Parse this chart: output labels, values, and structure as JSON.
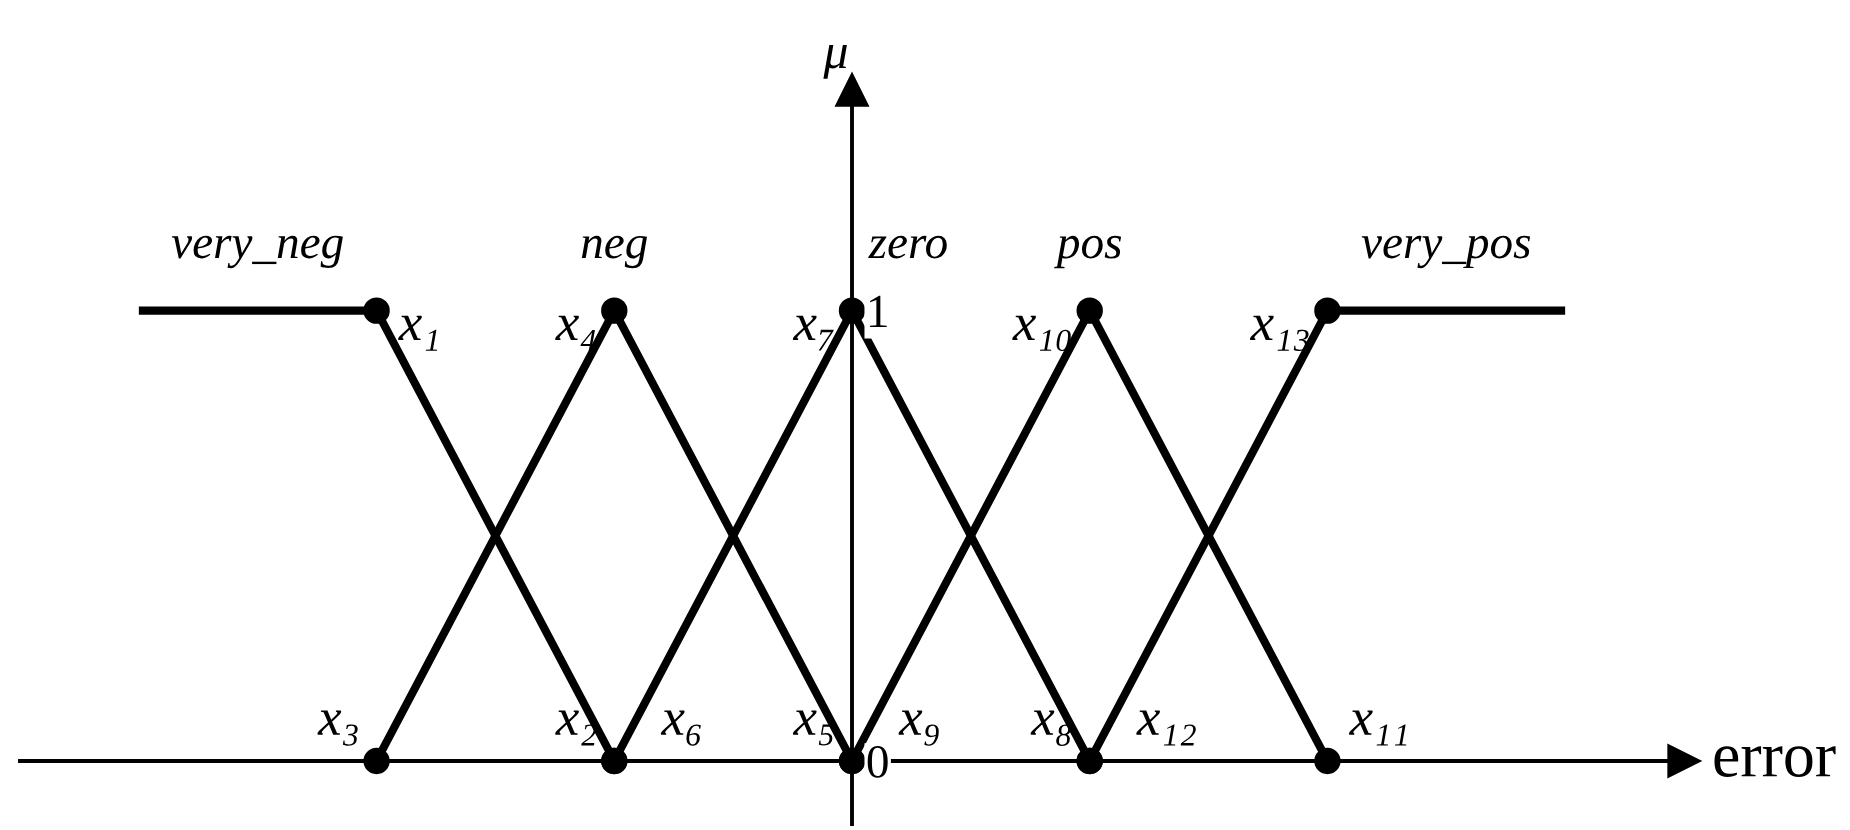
{
  "chart_data": {
    "type": "line",
    "categories": [
      null,
      null,
      null,
      null,
      null,
      null,
      null
    ],
    "series": [
      {
        "name": "very_neg",
        "color": "#000000",
        "values": [
          1,
          1,
          0,
          null,
          null,
          null,
          null
        ],
        "value_labels": [
          null,
          "x₁",
          "x₂",
          null,
          null,
          null,
          null
        ]
      },
      {
        "name": "neg",
        "color": "#000000",
        "values": [
          null,
          0,
          1,
          0,
          null,
          null,
          null
        ],
        "value_labels": [
          null,
          "x₃",
          "x₄",
          "x₅",
          null,
          null,
          null
        ]
      },
      {
        "name": "zero",
        "color": "#000000",
        "values": [
          null,
          null,
          0,
          1,
          0,
          null,
          null
        ],
        "value_labels": [
          null,
          null,
          "x₆",
          "x₇",
          "x₈",
          null,
          null
        ]
      },
      {
        "name": "pos",
        "color": "#000000",
        "values": [
          null,
          null,
          null,
          0,
          1,
          0,
          null
        ],
        "value_labels": [
          null,
          null,
          null,
          "x₉",
          "x₁₀",
          "x₁₁",
          null
        ]
      },
      {
        "name": "very_pos",
        "color": "#000000",
        "values": [
          null,
          null,
          null,
          null,
          0,
          1,
          1
        ],
        "value_labels": [
          null,
          null,
          null,
          null,
          "x₁₂",
          "x₁₃",
          null
        ]
      }
    ],
    "ylim": [
      -0.14,
      1.49
    ],
    "yticks": [
      0,
      1
    ],
    "ylabel": "μ",
    "xlabel": "error",
    "marker": "circle",
    "line_style": "solid",
    "tick_labels": "y"
  }
}
